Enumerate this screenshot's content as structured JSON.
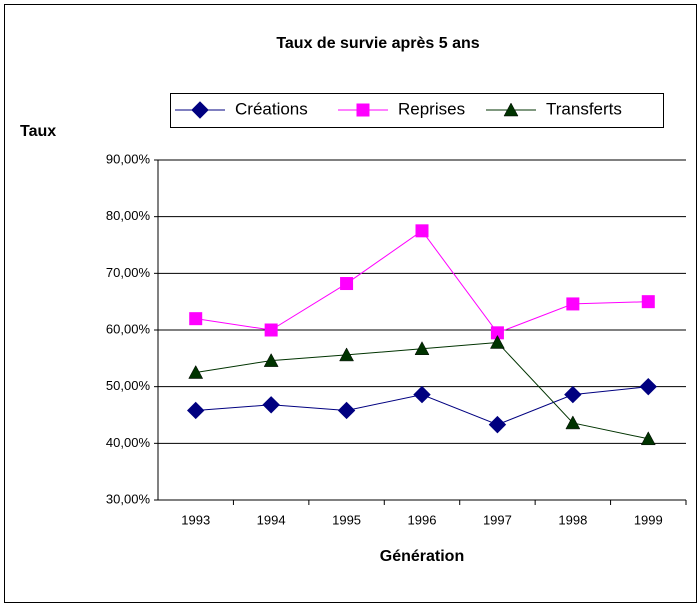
{
  "chart_data": {
    "type": "line",
    "title": "Taux de survie après 5 ans",
    "y_label": "Taux",
    "x_label": "Génération",
    "categories": [
      "1993",
      "1994",
      "1995",
      "1996",
      "1997",
      "1998",
      "1999"
    ],
    "series": [
      {
        "name": "Créations",
        "color": "#000080",
        "marker": "diamond",
        "values": [
          45.8,
          46.8,
          45.8,
          48.6,
          43.3,
          48.6,
          50.0
        ]
      },
      {
        "name": "Reprises",
        "color": "#ff00ff",
        "marker": "square",
        "values": [
          62.0,
          60.0,
          68.2,
          77.5,
          59.5,
          64.6,
          65.0
        ]
      },
      {
        "name": "Transferts",
        "color": "#003300",
        "marker": "triangle",
        "values": [
          52.5,
          54.6,
          55.6,
          56.7,
          57.8,
          43.6,
          40.8
        ]
      }
    ],
    "ylim": [
      30,
      90
    ],
    "yticks": [
      {
        "value": 30,
        "label": "30,00%"
      },
      {
        "value": 40,
        "label": "40,00%"
      },
      {
        "value": 50,
        "label": "50,00%"
      },
      {
        "value": 60,
        "label": "60,00%"
      },
      {
        "value": 70,
        "label": "70,00%"
      },
      {
        "value": 80,
        "label": "80,00%"
      },
      {
        "value": 90,
        "label": "90,00%"
      }
    ],
    "grid": true,
    "legend": "top"
  }
}
